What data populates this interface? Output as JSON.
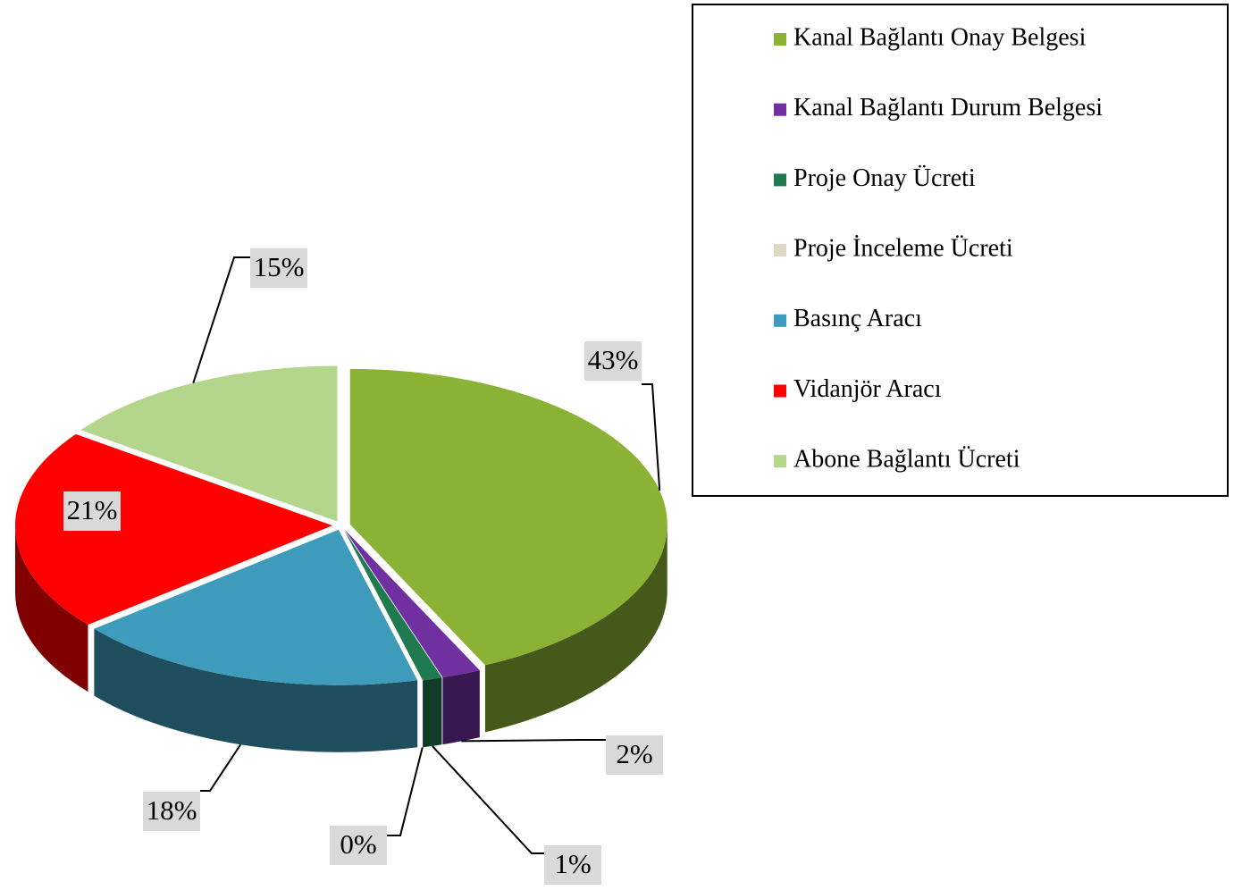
{
  "chart_data": {
    "type": "pie3d",
    "categories": [
      "Kanal Bağlantı Onay Belgesi",
      "Kanal Bağlantı Durum Belgesi",
      "Proje Onay Ücreti",
      "Proje İnceleme Ücreti",
      "Basınç Aracı",
      "Vidanjör Aracı",
      "Abone Bağlantı Ücreti"
    ],
    "values": [
      43,
      2,
      1,
      0,
      18,
      21,
      15
    ],
    "value_labels": [
      "43%",
      "2%",
      "1%",
      "0%",
      "18%",
      "21%",
      "15%"
    ],
    "colors": [
      "#8ab234",
      "#7030a0",
      "#1f7a4f",
      "#ddd9c3",
      "#3e9bbb",
      "#ff0000",
      "#b3d68c"
    ]
  }
}
